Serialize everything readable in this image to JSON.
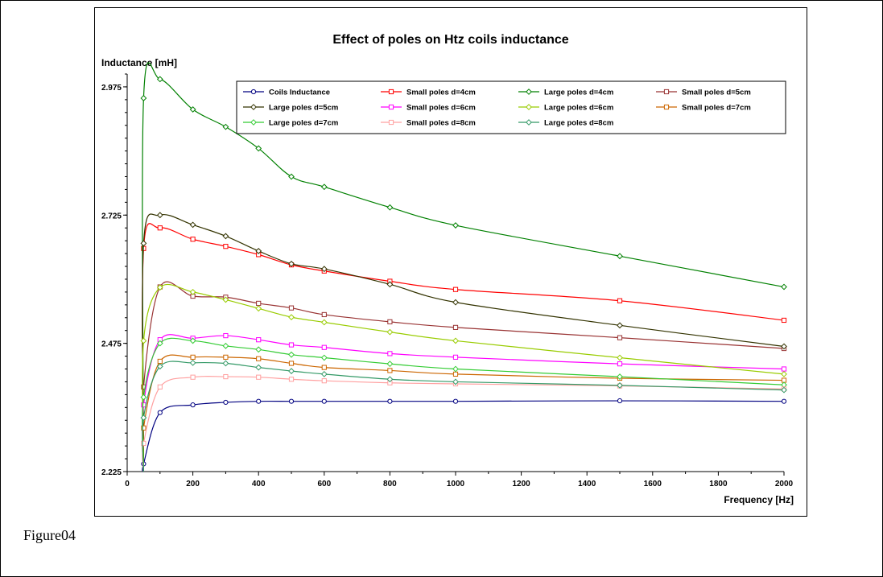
{
  "caption": "Figure04",
  "chart_data": {
    "type": "line",
    "title": "Effect of poles on Htz coils inductance",
    "xlabel": "Frequency [Hz]",
    "ylabel": "Inductance [mH]",
    "xlim": [
      0,
      2000
    ],
    "ylim": [
      2.225,
      3.0
    ],
    "xticks": [
      0,
      200,
      400,
      600,
      800,
      1000,
      1200,
      1400,
      1600,
      1800,
      2000
    ],
    "yticks": [
      2.225,
      2.475,
      2.725,
      2.975
    ],
    "ytick_labels": [
      "2.225",
      "2.475",
      "2.725",
      "2.975"
    ],
    "grid": false,
    "legend_position": "top",
    "x": [
      50,
      100,
      200,
      300,
      400,
      500,
      600,
      800,
      1000,
      1500,
      2000
    ],
    "series": [
      {
        "name": "Coils Inductance",
        "color": "#000080",
        "marker": "circle",
        "values": [
          2.24,
          2.34,
          2.355,
          2.36,
          2.362,
          2.362,
          2.362,
          2.362,
          2.362,
          2.363,
          2.362
        ]
      },
      {
        "name": "Small poles d=4cm",
        "color": "#ff0000",
        "marker": "square",
        "values": [
          2.66,
          2.7,
          2.678,
          2.664,
          2.648,
          2.628,
          2.616,
          2.596,
          2.58,
          2.558,
          2.52
        ]
      },
      {
        "name": "Large poles d=4cm",
        "color": "#008000",
        "marker": "diamond",
        "values": [
          2.953,
          2.99,
          2.931,
          2.897,
          2.855,
          2.8,
          2.78,
          2.74,
          2.705,
          2.645,
          2.585
        ]
      },
      {
        "name": "Small poles d=5cm",
        "color": "#993333",
        "marker": "square",
        "values": [
          2.39,
          2.585,
          2.567,
          2.565,
          2.553,
          2.544,
          2.531,
          2.517,
          2.506,
          2.486,
          2.465
        ]
      },
      {
        "name": "Large poles d=5cm",
        "color": "#333300",
        "marker": "diamond",
        "values": [
          2.67,
          2.725,
          2.706,
          2.684,
          2.655,
          2.63,
          2.62,
          2.59,
          2.555,
          2.51,
          2.469
        ]
      },
      {
        "name": "Small poles d=6cm",
        "color": "#ff00ff",
        "marker": "square",
        "values": [
          2.355,
          2.482,
          2.485,
          2.49,
          2.482,
          2.472,
          2.467,
          2.455,
          2.448,
          2.435,
          2.425
        ]
      },
      {
        "name": "Large poles d=6cm",
        "color": "#99cc00",
        "marker": "diamond",
        "values": [
          2.48,
          2.584,
          2.575,
          2.56,
          2.543,
          2.526,
          2.516,
          2.497,
          2.48,
          2.447,
          2.415
        ]
      },
      {
        "name": "Small poles d=7cm",
        "color": "#cc6600",
        "marker": "square",
        "values": [
          2.31,
          2.44,
          2.448,
          2.448,
          2.445,
          2.436,
          2.428,
          2.422,
          2.415,
          2.407,
          2.403
        ]
      },
      {
        "name": "Large poles d=7cm",
        "color": "#33cc33",
        "marker": "diamond",
        "values": [
          2.37,
          2.475,
          2.48,
          2.47,
          2.463,
          2.453,
          2.447,
          2.435,
          2.425,
          2.41,
          2.394
        ]
      },
      {
        "name": "Small poles d=8cm",
        "color": "#ffa0a0",
        "marker": "square",
        "values": [
          2.28,
          2.39,
          2.409,
          2.41,
          2.409,
          2.405,
          2.402,
          2.398,
          2.396,
          2.392,
          2.386
        ]
      },
      {
        "name": "Large poles d=8cm",
        "color": "#339966",
        "marker": "diamond",
        "values": [
          2.33,
          2.43,
          2.437,
          2.436,
          2.428,
          2.421,
          2.415,
          2.405,
          2.4,
          2.393,
          2.384
        ]
      }
    ]
  }
}
